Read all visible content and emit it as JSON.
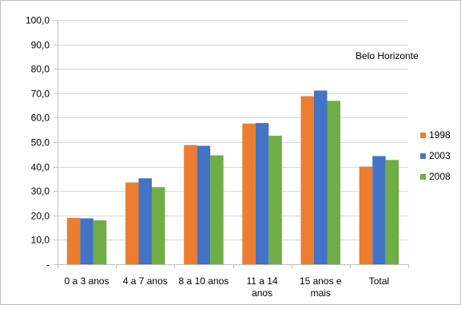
{
  "chart_data": {
    "type": "bar",
    "annotation": "Belo Horizonte",
    "categories": [
      [
        "0 a 3 anos"
      ],
      [
        "4 a 7 anos"
      ],
      [
        "8 a 10 anos"
      ],
      [
        "11 a 14",
        "anos"
      ],
      [
        "15 anos e",
        "mais"
      ],
      [
        "Total"
      ]
    ],
    "series": [
      {
        "name": "1998",
        "color": "#ED7D31",
        "values": [
          19.0,
          33.5,
          48.8,
          57.6,
          68.8,
          40.0
        ]
      },
      {
        "name": "2003",
        "color": "#4472C4",
        "values": [
          18.8,
          35.2,
          48.5,
          57.8,
          71.1,
          44.3
        ]
      },
      {
        "name": "2008",
        "color": "#70AD47",
        "values": [
          18.0,
          31.6,
          44.6,
          52.6,
          66.9,
          42.7
        ]
      }
    ],
    "ylim": [
      0,
      100
    ],
    "yticks": [
      "-",
      "10,0",
      "20,0",
      "30,0",
      "40,0",
      "50,0",
      "60,0",
      "70,0",
      "80,0",
      "90,0",
      "100,0"
    ],
    "grid": true,
    "legend_position": "right"
  }
}
